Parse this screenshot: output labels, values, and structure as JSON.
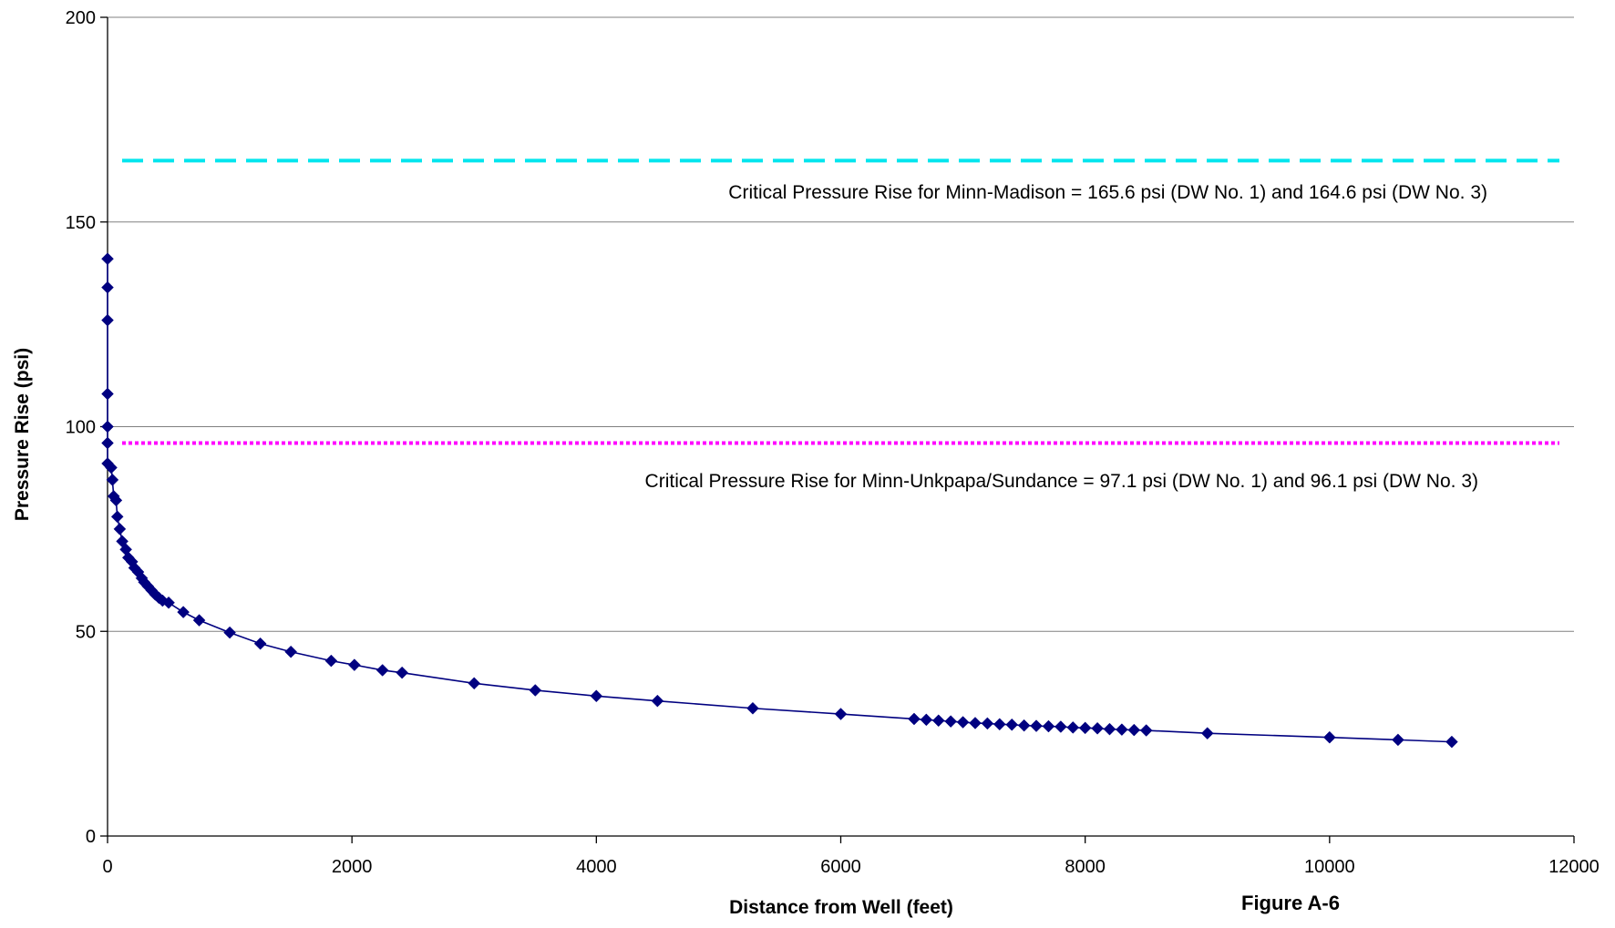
{
  "chart_data": {
    "type": "scatter",
    "xlabel": "Distance from Well (feet)",
    "ylabel": "Pressure Rise (psi)",
    "figure_label": "Figure A-6",
    "xlim": [
      0,
      12000
    ],
    "ylim": [
      0,
      200
    ],
    "x_ticks": [
      "0",
      "2000",
      "4000",
      "6000",
      "8000",
      "10000",
      "12000"
    ],
    "y_ticks": [
      "0",
      "50",
      "100",
      "150",
      "200"
    ],
    "grid": "horizontal",
    "colors": {
      "series": "#000080",
      "madison_line": "#00E5EE",
      "unkpapa_line": "#FF00FF",
      "grid": "#808080"
    },
    "series": [
      {
        "marker": "diamond",
        "line": "solid",
        "points": [
          [
            0,
            141
          ],
          [
            0,
            134
          ],
          [
            0,
            126
          ],
          [
            0,
            108
          ],
          [
            0,
            100
          ],
          [
            0,
            96
          ],
          [
            0,
            91
          ],
          [
            30,
            90
          ],
          [
            40,
            87
          ],
          [
            50,
            83
          ],
          [
            70,
            82
          ],
          [
            80,
            78
          ],
          [
            100,
            75
          ],
          [
            120,
            72
          ],
          [
            150,
            70
          ],
          [
            170,
            68
          ],
          [
            200,
            67
          ],
          [
            220,
            65.5
          ],
          [
            250,
            64.5
          ],
          [
            280,
            63
          ],
          [
            300,
            62
          ],
          [
            330,
            61
          ],
          [
            360,
            60
          ],
          [
            390,
            59
          ],
          [
            420,
            58.2
          ],
          [
            450,
            57.5
          ],
          [
            500,
            57
          ],
          [
            620,
            54.7
          ],
          [
            750,
            52.7
          ],
          [
            1000,
            49.7
          ],
          [
            1250,
            47
          ],
          [
            1500,
            45
          ],
          [
            1830,
            42.8
          ],
          [
            2020,
            41.8
          ],
          [
            2250,
            40.5
          ],
          [
            2410,
            39.9
          ],
          [
            3000,
            37.3
          ],
          [
            3500,
            35.6
          ],
          [
            4000,
            34.2
          ],
          [
            4500,
            33
          ],
          [
            5280,
            31.2
          ],
          [
            6000,
            29.8
          ],
          [
            6600,
            28.6
          ],
          [
            6700,
            28.4
          ],
          [
            6800,
            28.2
          ],
          [
            6900,
            28
          ],
          [
            7000,
            27.8
          ],
          [
            7100,
            27.6
          ],
          [
            7200,
            27.5
          ],
          [
            7300,
            27.3
          ],
          [
            7400,
            27.2
          ],
          [
            7500,
            27
          ],
          [
            7600,
            26.9
          ],
          [
            7700,
            26.8
          ],
          [
            7800,
            26.7
          ],
          [
            7900,
            26.5
          ],
          [
            8000,
            26.4
          ],
          [
            8100,
            26.3
          ],
          [
            8200,
            26.1
          ],
          [
            8300,
            26
          ],
          [
            8400,
            25.9
          ],
          [
            8500,
            25.8
          ],
          [
            9000,
            25.1
          ],
          [
            10000,
            24.1
          ],
          [
            10560,
            23.5
          ],
          [
            11000,
            23
          ]
        ]
      }
    ],
    "reference_lines": [
      {
        "y": 165,
        "style": "dashed",
        "color": "cyan",
        "label": "Critical Pressure Rise for Minn-Madison = 165.6 psi (DW No. 1) and 164.6 psi (DW No. 3)"
      },
      {
        "y": 96,
        "style": "dotted",
        "color": "magenta",
        "label": "Critical Pressure Rise for Minn-Unkpapa/Sundance = 97.1 psi (DW No. 1) and 96.1 psi (DW No. 3)"
      }
    ]
  }
}
